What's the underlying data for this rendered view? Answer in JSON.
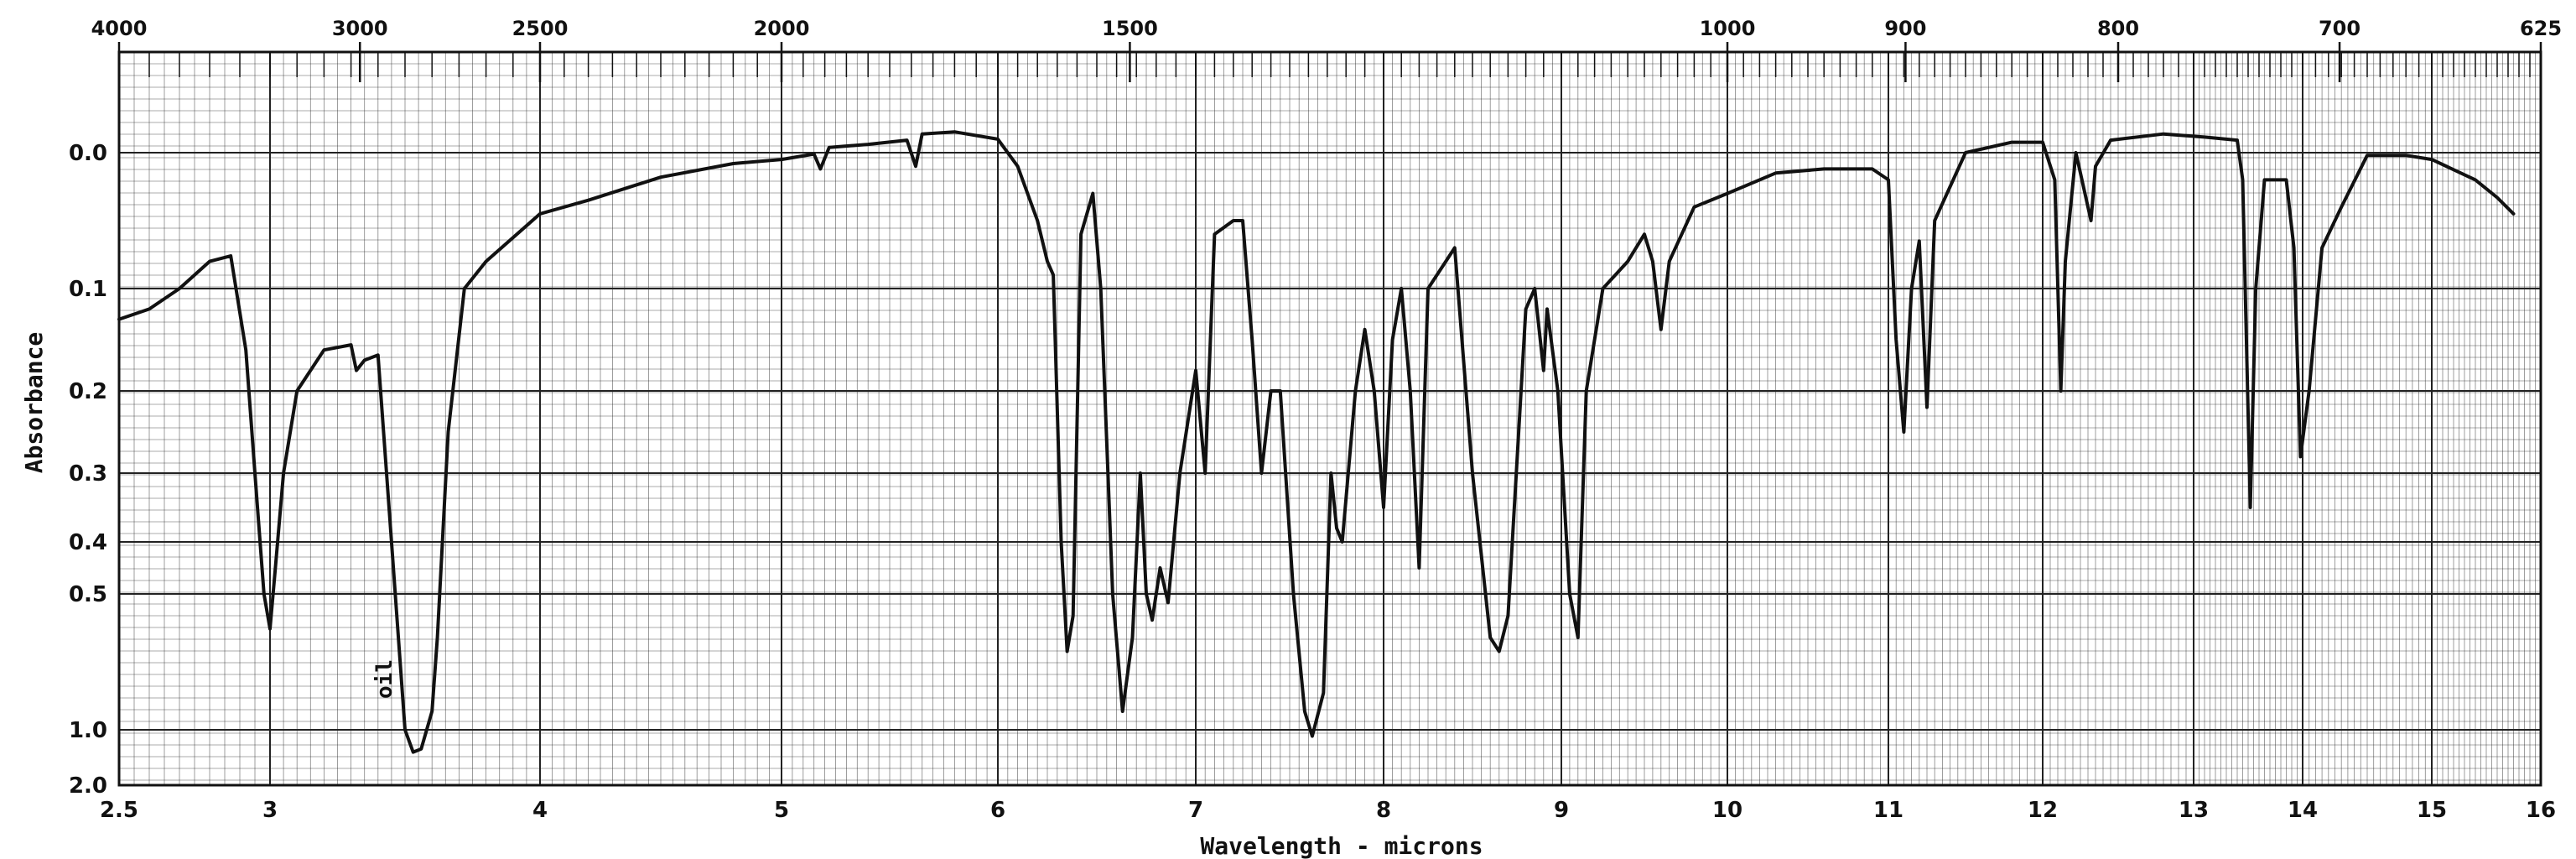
{
  "chart_data": {
    "type": "line",
    "title": "",
    "xlabel": "Wavelength - microns",
    "ylabel": "Absorbance",
    "xlim": [
      2.5,
      16
    ],
    "ylim_absorbance": [
      0.0,
      2.0
    ],
    "x_ticks": [
      {
        "value": 2.5,
        "label": "2.5"
      },
      {
        "value": 3,
        "label": "3"
      },
      {
        "value": 4,
        "label": "4"
      },
      {
        "value": 5,
        "label": "5"
      },
      {
        "value": 6,
        "label": "6"
      },
      {
        "value": 7,
        "label": "7"
      },
      {
        "value": 8,
        "label": "8"
      },
      {
        "value": 9,
        "label": "9"
      },
      {
        "value": 10,
        "label": "10"
      },
      {
        "value": 11,
        "label": "11"
      },
      {
        "value": 12,
        "label": "12"
      },
      {
        "value": 13,
        "label": "13"
      },
      {
        "value": 14,
        "label": "14"
      },
      {
        "value": 15,
        "label": "15"
      },
      {
        "value": 16,
        "label": "16"
      }
    ],
    "top_ticks": [
      {
        "value": 2.5,
        "label": "4000"
      },
      {
        "value": 3.333,
        "label": "3000"
      },
      {
        "value": 4,
        "label": "2500"
      },
      {
        "value": 5,
        "label": "2000"
      },
      {
        "value": 6.667,
        "label": "1500"
      },
      {
        "value": 10,
        "label": "1000"
      },
      {
        "value": 11.111,
        "label": "900"
      },
      {
        "value": 12.5,
        "label": "800"
      },
      {
        "value": 14.286,
        "label": "700"
      },
      {
        "value": 16,
        "label": "625"
      }
    ],
    "y_ticks": [
      {
        "value": 0.0,
        "label": "0.0"
      },
      {
        "value": 0.1,
        "label": "0.1"
      },
      {
        "value": 0.2,
        "label": "0.2"
      },
      {
        "value": 0.3,
        "label": "0.3"
      },
      {
        "value": 0.4,
        "label": "0.4"
      },
      {
        "value": 0.5,
        "label": "0.5"
      },
      {
        "value": 1.0,
        "label": "1.0"
      },
      {
        "value": 2.0,
        "label": "2.0"
      }
    ],
    "annotations": [
      {
        "text": "oil",
        "x": 3.45,
        "y": 0.75
      }
    ],
    "grid": true,
    "colors": {
      "line": "#111111",
      "grid": "#222222"
    },
    "series": [
      {
        "points": [
          [
            2.5,
            0.13
          ],
          [
            2.6,
            0.12
          ],
          [
            2.7,
            0.1
          ],
          [
            2.8,
            0.08
          ],
          [
            2.87,
            0.076
          ],
          [
            2.92,
            0.16
          ],
          [
            2.95,
            0.3
          ],
          [
            2.98,
            0.5
          ],
          [
            3.0,
            0.58
          ],
          [
            3.02,
            0.45
          ],
          [
            3.05,
            0.3
          ],
          [
            3.1,
            0.2
          ],
          [
            3.2,
            0.16
          ],
          [
            3.3,
            0.155
          ],
          [
            3.32,
            0.18
          ],
          [
            3.35,
            0.17
          ],
          [
            3.4,
            0.165
          ],
          [
            3.45,
            0.4
          ],
          [
            3.5,
            1.0
          ],
          [
            3.53,
            1.35
          ],
          [
            3.56,
            1.3
          ],
          [
            3.6,
            0.9
          ],
          [
            3.62,
            0.6
          ],
          [
            3.66,
            0.25
          ],
          [
            3.72,
            0.1
          ],
          [
            3.8,
            0.08
          ],
          [
            4.0,
            0.045
          ],
          [
            4.2,
            0.035
          ],
          [
            4.5,
            0.018
          ],
          [
            4.8,
            0.008
          ],
          [
            5.0,
            0.005
          ],
          [
            5.15,
            0.001
          ],
          [
            5.18,
            0.012
          ],
          [
            5.22,
            -0.005
          ],
          [
            5.4,
            -0.008
          ],
          [
            5.58,
            -0.012
          ],
          [
            5.62,
            0.01
          ],
          [
            5.65,
            -0.018
          ],
          [
            5.8,
            -0.02
          ],
          [
            6.0,
            -0.013
          ],
          [
            6.1,
            0.01
          ],
          [
            6.2,
            0.05
          ],
          [
            6.25,
            0.08
          ],
          [
            6.28,
            0.09
          ],
          [
            6.32,
            0.4
          ],
          [
            6.35,
            0.65
          ],
          [
            6.38,
            0.55
          ],
          [
            6.42,
            0.06
          ],
          [
            6.48,
            0.03
          ],
          [
            6.52,
            0.1
          ],
          [
            6.58,
            0.5
          ],
          [
            6.63,
            0.9
          ],
          [
            6.68,
            0.6
          ],
          [
            6.72,
            0.3
          ],
          [
            6.75,
            0.5
          ],
          [
            6.78,
            0.56
          ],
          [
            6.82,
            0.45
          ],
          [
            6.86,
            0.52
          ],
          [
            6.92,
            0.3
          ],
          [
            7.0,
            0.18
          ],
          [
            7.05,
            0.3
          ],
          [
            7.1,
            0.06
          ],
          [
            7.2,
            0.05
          ],
          [
            7.25,
            0.05
          ],
          [
            7.3,
            0.15
          ],
          [
            7.35,
            0.3
          ],
          [
            7.4,
            0.2
          ],
          [
            7.45,
            0.2
          ],
          [
            7.52,
            0.5
          ],
          [
            7.58,
            0.9
          ],
          [
            7.62,
            1.1
          ],
          [
            7.68,
            0.8
          ],
          [
            7.72,
            0.3
          ],
          [
            7.75,
            0.38
          ],
          [
            7.78,
            0.4
          ],
          [
            7.85,
            0.2
          ],
          [
            7.9,
            0.14
          ],
          [
            7.95,
            0.2
          ],
          [
            8.0,
            0.35
          ],
          [
            8.05,
            0.15
          ],
          [
            8.1,
            0.1
          ],
          [
            8.15,
            0.2
          ],
          [
            8.2,
            0.45
          ],
          [
            8.25,
            0.1
          ],
          [
            8.35,
            0.08
          ],
          [
            8.4,
            0.07
          ],
          [
            8.5,
            0.3
          ],
          [
            8.6,
            0.6
          ],
          [
            8.65,
            0.65
          ],
          [
            8.7,
            0.55
          ],
          [
            8.8,
            0.12
          ],
          [
            8.85,
            0.1
          ],
          [
            8.9,
            0.18
          ],
          [
            8.92,
            0.12
          ],
          [
            8.98,
            0.2
          ],
          [
            9.05,
            0.5
          ],
          [
            9.1,
            0.6
          ],
          [
            9.15,
            0.2
          ],
          [
            9.25,
            0.1
          ],
          [
            9.4,
            0.08
          ],
          [
            9.5,
            0.06
          ],
          [
            9.55,
            0.08
          ],
          [
            9.6,
            0.14
          ],
          [
            9.65,
            0.08
          ],
          [
            9.8,
            0.04
          ],
          [
            10.0,
            0.03
          ],
          [
            10.3,
            0.015
          ],
          [
            10.6,
            0.012
          ],
          [
            10.9,
            0.012
          ],
          [
            11.0,
            0.02
          ],
          [
            11.05,
            0.15
          ],
          [
            11.1,
            0.25
          ],
          [
            11.15,
            0.1
          ],
          [
            11.2,
            0.065
          ],
          [
            11.25,
            0.22
          ],
          [
            11.3,
            0.05
          ],
          [
            11.5,
            0.0
          ],
          [
            11.8,
            -0.01
          ],
          [
            12.0,
            -0.01
          ],
          [
            12.08,
            0.02
          ],
          [
            12.12,
            0.2
          ],
          [
            12.15,
            0.08
          ],
          [
            12.22,
            0.0
          ],
          [
            12.28,
            0.03
          ],
          [
            12.32,
            0.05
          ],
          [
            12.35,
            0.01
          ],
          [
            12.45,
            -0.012
          ],
          [
            12.8,
            -0.018
          ],
          [
            13.1,
            -0.015
          ],
          [
            13.4,
            -0.012
          ],
          [
            13.45,
            0.02
          ],
          [
            13.52,
            0.35
          ],
          [
            13.57,
            0.1
          ],
          [
            13.65,
            0.02
          ],
          [
            13.85,
            0.02
          ],
          [
            13.92,
            0.07
          ],
          [
            13.98,
            0.28
          ],
          [
            14.05,
            0.2
          ],
          [
            14.15,
            0.07
          ],
          [
            14.3,
            0.04
          ],
          [
            14.5,
            0.002
          ],
          [
            14.8,
            0.002
          ],
          [
            15.0,
            0.005
          ],
          [
            15.4,
            0.02
          ],
          [
            15.6,
            0.033
          ],
          [
            15.75,
            0.045
          ]
        ]
      }
    ]
  }
}
